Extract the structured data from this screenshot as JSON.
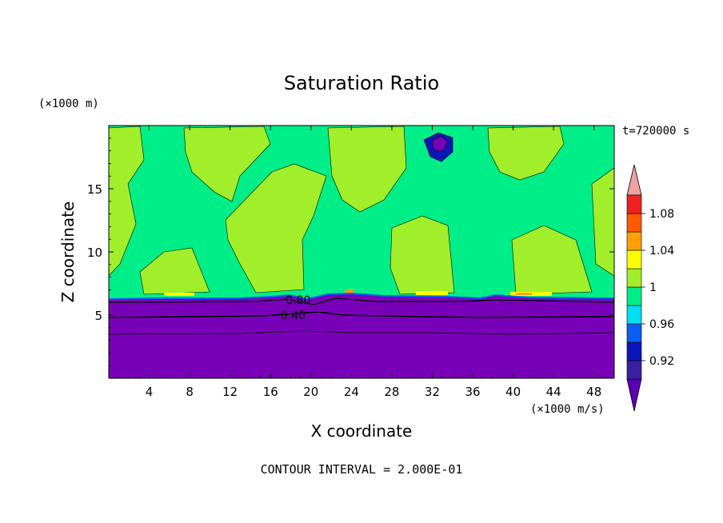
{
  "chart_data": {
    "type": "heatmap",
    "title": "Saturation Ratio",
    "xlabel": "X coordinate",
    "ylabel": "Z coordinate",
    "x_units": "(×1000 m/s)",
    "y_units": "(×1000 m)",
    "time_label": "t=720000 s",
    "footer": "CONTOUR INTERVAL = 2.000E-01",
    "xlim": [
      0,
      50
    ],
    "ylim": [
      0,
      20
    ],
    "x_ticks": [
      4,
      8,
      12,
      16,
      20,
      24,
      28,
      32,
      36,
      40,
      44,
      48
    ],
    "y_ticks": [
      5,
      10,
      15
    ],
    "contour_labels": [
      {
        "text": "0.80",
        "x": 17.5,
        "y": 6.2
      },
      {
        "text": "0.40",
        "x": 17.0,
        "y": 5.0
      }
    ],
    "colorbar": {
      "labels": [
        "1.08",
        "1.04",
        "1",
        "0.96",
        "0.92"
      ],
      "label_values": [
        1.08,
        1.04,
        1.0,
        0.96,
        0.92
      ],
      "levels": [
        {
          "color": "#5a00b0",
          "value": 0.9,
          "role": "under"
        },
        {
          "color": "#3a1fa0",
          "value": 0.92
        },
        {
          "color": "#0a16b8",
          "value": 0.94
        },
        {
          "color": "#0a5ff0",
          "value": 0.96
        },
        {
          "color": "#00e0f0",
          "value": 0.98
        },
        {
          "color": "#00ee88",
          "value": 1.0
        },
        {
          "color": "#a0ef2a",
          "value": 1.02
        },
        {
          "color": "#ffff00",
          "value": 1.04
        },
        {
          "color": "#ffa000",
          "value": 1.06
        },
        {
          "color": "#ff5a00",
          "value": 1.08
        },
        {
          "color": "#ee2222",
          "value": 1.1
        },
        {
          "color": "#f0a0a0",
          "value": 1.12,
          "role": "over"
        }
      ]
    },
    "colors": {
      "dry_layer": "#7800b8",
      "saturated": "#00ee88",
      "supersaturated": "#a0ef2a",
      "ice_region": "#0a16b8",
      "peak": "#ffff00"
    }
  }
}
